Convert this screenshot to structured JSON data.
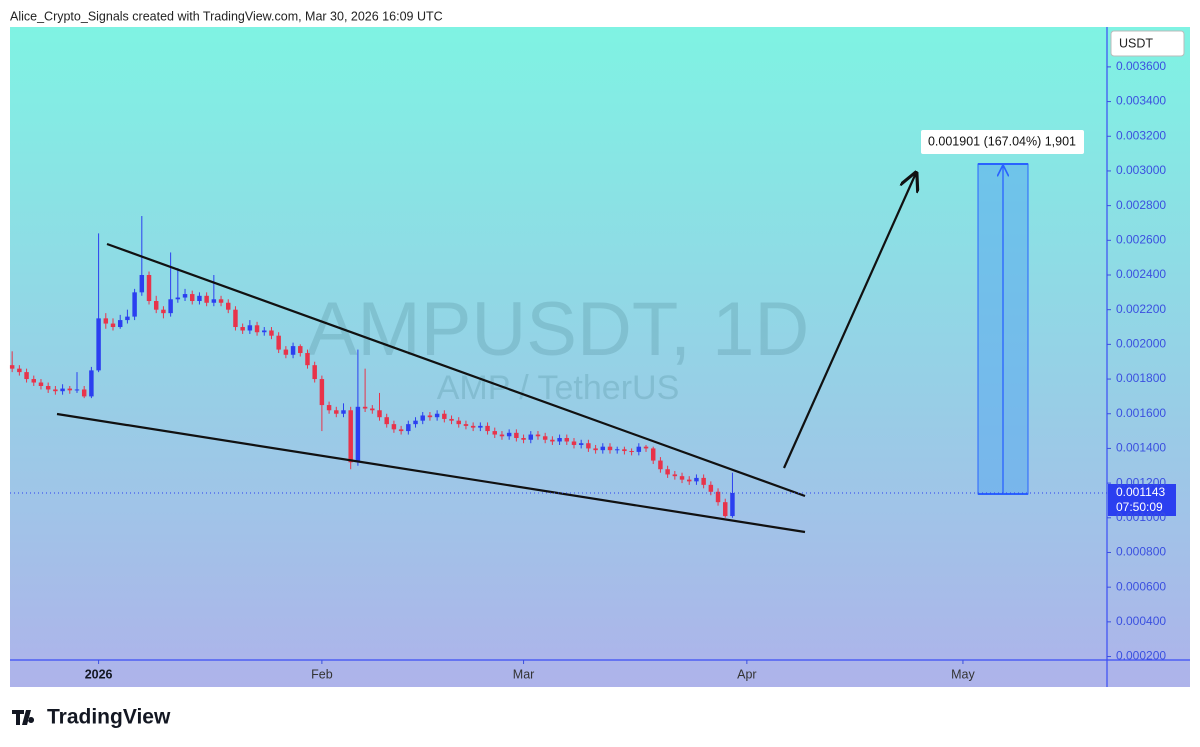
{
  "header": {
    "credit": "Alice_Crypto_Signals created with TradingView.com, Mar 30, 2026 16:09 UTC"
  },
  "chart_data": {
    "type": "candlestick",
    "watermark_symbol": "AMPUSDT, 1D",
    "watermark_name": "AMP / TetherUS",
    "currency": "USDT",
    "last_price": 0.001143,
    "countdown": "07:50:09",
    "measure_label": "0.001901 (167.04%) 1,901",
    "up_color": "#2b3ff0",
    "down_color": "#e8334a",
    "grid": false,
    "xlim": [
      -0.3,
      152
    ],
    "xticks": [
      {
        "value": 12,
        "label": "2026"
      },
      {
        "value": 43,
        "label": "Feb"
      },
      {
        "value": 71,
        "label": "Mar"
      },
      {
        "value": 102,
        "label": "Apr"
      },
      {
        "value": 132,
        "label": "May"
      }
    ],
    "ylim": [
      0.00018,
      0.00383
    ],
    "yticks": [
      {
        "value": 0.0002,
        "label": "0.000200"
      },
      {
        "value": 0.0004,
        "label": "0.000400"
      },
      {
        "value": 0.0006,
        "label": "0.000600"
      },
      {
        "value": 0.0008,
        "label": "0.000800"
      },
      {
        "value": 0.001,
        "label": "0.001000"
      },
      {
        "value": 0.0012,
        "label": "0.001200"
      },
      {
        "value": 0.0014,
        "label": "0.001400"
      },
      {
        "value": 0.0016,
        "label": "0.001600"
      },
      {
        "value": 0.0018,
        "label": "0.001800"
      },
      {
        "value": 0.002,
        "label": "0.002000"
      },
      {
        "value": 0.0022,
        "label": "0.002200"
      },
      {
        "value": 0.0024,
        "label": "0.002400"
      },
      {
        "value": 0.0026,
        "label": "0.002600"
      },
      {
        "value": 0.0028,
        "label": "0.002800"
      },
      {
        "value": 0.003,
        "label": "0.003000"
      },
      {
        "value": 0.0032,
        "label": "0.003200"
      },
      {
        "value": 0.0034,
        "label": "0.003400"
      },
      {
        "value": 0.0036,
        "label": "0.003600"
      }
    ],
    "open": [
      0.00188,
      0.00186,
      0.00184,
      0.0018,
      0.00178,
      0.00176,
      0.00174,
      0.00173,
      0.001745,
      0.001735,
      0.00174,
      0.0017,
      0.00185,
      0.00215,
      0.00212,
      0.0021,
      0.00214,
      0.00216,
      0.0023,
      0.0024,
      0.00225,
      0.0022,
      0.00218,
      0.00226,
      0.00227,
      0.00229,
      0.00225,
      0.00228,
      0.00224,
      0.00226,
      0.00224,
      0.0022,
      0.0021,
      0.00208,
      0.00211,
      0.00207,
      0.00208,
      0.00205,
      0.00197,
      0.00194,
      0.00199,
      0.00195,
      0.00188,
      0.0018,
      0.00165,
      0.00162,
      0.0016,
      0.00162,
      0.00132,
      0.00164,
      0.00163,
      0.00162,
      0.00158,
      0.00154,
      0.00151,
      0.0015,
      0.00154,
      0.00156,
      0.00159,
      0.00158,
      0.0016,
      0.00157,
      0.00156,
      0.00154,
      0.00153,
      0.00152,
      0.00153,
      0.0015,
      0.00148,
      0.00147,
      0.00149,
      0.00146,
      0.00145,
      0.00148,
      0.00147,
      0.00145,
      0.00144,
      0.00146,
      0.00144,
      0.00142,
      0.00143,
      0.0014,
      0.00139,
      0.00141,
      0.00139,
      0.001395,
      0.001385,
      0.00138,
      0.00141,
      0.0014,
      0.00133,
      0.00128,
      0.00125,
      0.00124,
      0.00122,
      0.00121,
      0.00123,
      0.00119,
      0.00115,
      0.00109,
      0.00101
    ],
    "high": [
      0.00196,
      0.00188,
      0.00186,
      0.00182,
      0.0018,
      0.00178,
      0.00176,
      0.00177,
      0.00176,
      0.00184,
      0.00176,
      0.00187,
      0.00264,
      0.00218,
      0.00215,
      0.00217,
      0.0022,
      0.00232,
      0.00274,
      0.00242,
      0.00228,
      0.00222,
      0.00253,
      0.00244,
      0.00232,
      0.00231,
      0.0023,
      0.0023,
      0.0024,
      0.00228,
      0.00226,
      0.00222,
      0.00212,
      0.00214,
      0.00213,
      0.0021,
      0.0021,
      0.00207,
      0.00199,
      0.00201,
      0.002,
      0.00197,
      0.0019,
      0.00182,
      0.00167,
      0.00164,
      0.00166,
      0.00164,
      0.00197,
      0.00186,
      0.00165,
      0.00172,
      0.0016,
      0.00156,
      0.00153,
      0.00156,
      0.00158,
      0.00161,
      0.00161,
      0.00162,
      0.00162,
      0.00159,
      0.00158,
      0.00156,
      0.00155,
      0.00155,
      0.00155,
      0.00152,
      0.0015,
      0.00151,
      0.00151,
      0.00148,
      0.0015,
      0.0015,
      0.00149,
      0.00147,
      0.00148,
      0.00148,
      0.00146,
      0.00145,
      0.00145,
      0.00142,
      0.00143,
      0.00143,
      0.00141,
      0.00141,
      0.0014,
      0.00143,
      0.00142,
      0.00141,
      0.00135,
      0.0013,
      0.00127,
      0.00126,
      0.00124,
      0.00125,
      0.00125,
      0.00121,
      0.00117,
      0.00111,
      0.00126
    ],
    "low": [
      0.00184,
      0.00182,
      0.00178,
      0.00176,
      0.00174,
      0.00172,
      0.00171,
      0.00171,
      0.001715,
      0.00172,
      0.00169,
      0.00169,
      0.00184,
      0.00209,
      0.00208,
      0.00209,
      0.00212,
      0.00214,
      0.00228,
      0.00223,
      0.00218,
      0.00215,
      0.00216,
      0.00224,
      0.00225,
      0.00223,
      0.00223,
      0.00222,
      0.00222,
      0.00222,
      0.00218,
      0.00208,
      0.00206,
      0.00206,
      0.00205,
      0.00205,
      0.00203,
      0.00195,
      0.00192,
      0.00192,
      0.00193,
      0.00186,
      0.00178,
      0.0015,
      0.0016,
      0.00158,
      0.00158,
      0.00128,
      0.0013,
      0.00161,
      0.0016,
      0.00156,
      0.00152,
      0.00149,
      0.00148,
      0.00148,
      0.00152,
      0.00154,
      0.00156,
      0.00156,
      0.00155,
      0.00154,
      0.00152,
      0.00151,
      0.0015,
      0.0015,
      0.00148,
      0.00146,
      0.00145,
      0.00145,
      0.00144,
      0.00143,
      0.00143,
      0.00145,
      0.00143,
      0.00142,
      0.00142,
      0.00142,
      0.0014,
      0.0014,
      0.00138,
      0.00137,
      0.00137,
      0.00137,
      0.00137,
      0.001365,
      0.00136,
      0.00136,
      0.00138,
      0.00131,
      0.00126,
      0.00123,
      0.00122,
      0.0012,
      0.00119,
      0.00119,
      0.00117,
      0.00113,
      0.00107,
      0.001,
      0.001
    ],
    "close": [
      0.00186,
      0.00184,
      0.0018,
      0.00178,
      0.00176,
      0.00174,
      0.00173,
      0.001745,
      0.001735,
      0.00174,
      0.0017,
      0.00185,
      0.00215,
      0.00212,
      0.0021,
      0.00214,
      0.00216,
      0.0023,
      0.0024,
      0.00225,
      0.0022,
      0.00218,
      0.00226,
      0.00227,
      0.00229,
      0.00225,
      0.00228,
      0.00224,
      0.00226,
      0.00224,
      0.0022,
      0.0021,
      0.00208,
      0.00211,
      0.00207,
      0.00208,
      0.00205,
      0.00197,
      0.00194,
      0.00199,
      0.00195,
      0.00188,
      0.0018,
      0.00165,
      0.00162,
      0.0016,
      0.00162,
      0.00132,
      0.00164,
      0.00163,
      0.00162,
      0.00158,
      0.00154,
      0.00151,
      0.0015,
      0.00154,
      0.00156,
      0.00159,
      0.00158,
      0.0016,
      0.00157,
      0.00156,
      0.00154,
      0.00153,
      0.00152,
      0.00153,
      0.0015,
      0.00148,
      0.00147,
      0.00149,
      0.00146,
      0.00145,
      0.00148,
      0.00147,
      0.00145,
      0.00144,
      0.00146,
      0.00144,
      0.00142,
      0.00143,
      0.0014,
      0.00139,
      0.00141,
      0.00139,
      0.001395,
      0.001385,
      0.00138,
      0.00141,
      0.0014,
      0.00133,
      0.00128,
      0.00125,
      0.00124,
      0.00122,
      0.00121,
      0.00123,
      0.00119,
      0.00115,
      0.00109,
      0.00101,
      0.001143
    ]
  },
  "footer": {
    "brand": "TradingView"
  }
}
